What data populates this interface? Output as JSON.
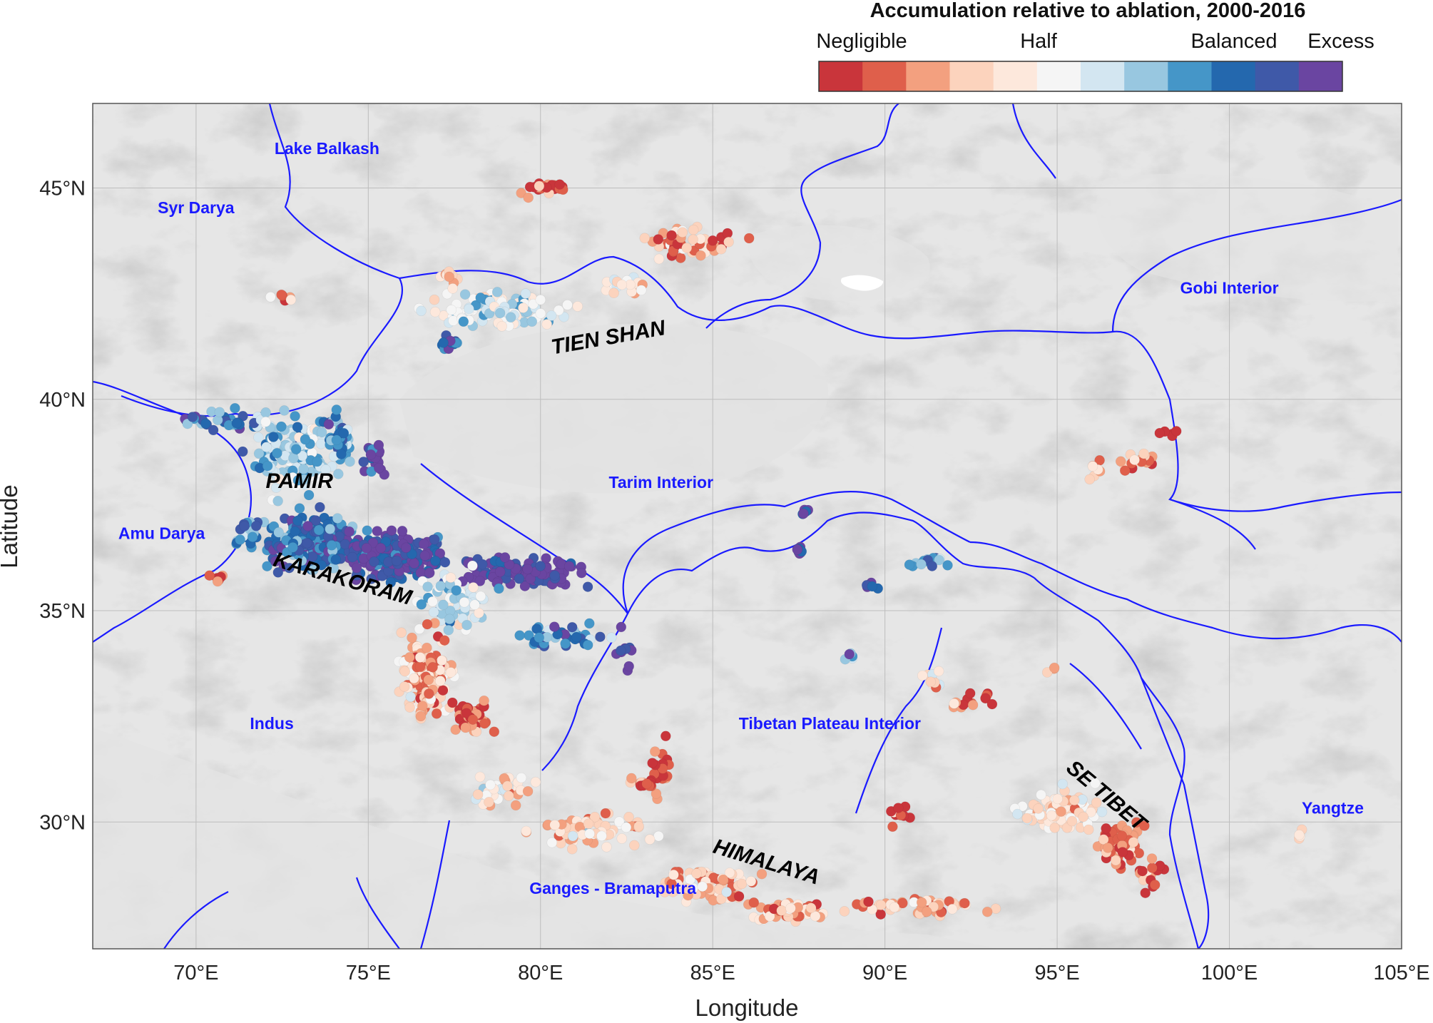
{
  "colorbar": {
    "title": "Accumulation relative to ablation, 2000-2016",
    "labels": [
      "Negligible",
      "Half",
      "Balanced",
      "Excess"
    ],
    "colors": [
      "#c9353b",
      "#df5f4b",
      "#f3a07f",
      "#fcd3bd",
      "#fde8dc",
      "#f5f5f5",
      "#d3e6f1",
      "#98c7e0",
      "#4596c8",
      "#2468ae",
      "#3f59a8",
      "#6a45a1"
    ]
  },
  "axes": {
    "xlabel": "Longitude",
    "ylabel": "Latitude",
    "xticks": [
      "70°E",
      "75°E",
      "80°E",
      "85°E",
      "90°E",
      "95°E",
      "100°E",
      "105°E"
    ],
    "yticks": [
      "30°N",
      "35°N",
      "40°N",
      "45°N"
    ],
    "lon_range": [
      67,
      105
    ],
    "lat_range": [
      27,
      47
    ]
  },
  "basins": [
    {
      "name": "Lake Balkash",
      "lon": 73.8,
      "lat": 45.8
    },
    {
      "name": "Syr Darya",
      "lon": 70.0,
      "lat": 44.4
    },
    {
      "name": "Gobi Interior",
      "lon": 100.0,
      "lat": 42.5
    },
    {
      "name": "Tarim Interior",
      "lon": 83.5,
      "lat": 37.9
    },
    {
      "name": "Amu Darya",
      "lon": 69.0,
      "lat": 36.7
    },
    {
      "name": "Indus",
      "lon": 72.2,
      "lat": 32.2
    },
    {
      "name": "Tibetan Plateau Interior",
      "lon": 88.4,
      "lat": 32.2
    },
    {
      "name": "Yangtze",
      "lon": 103.0,
      "lat": 30.2
    },
    {
      "name": "Ganges - Bramaputra",
      "lon": 82.1,
      "lat": 28.3
    }
  ],
  "regions": [
    {
      "name": "TIEN SHAN",
      "lon": 82.0,
      "lat": 41.3,
      "rot": -10
    },
    {
      "name": "PAMIR",
      "lon": 73.0,
      "lat": 37.9,
      "rot": 0
    },
    {
      "name": "KARAKORAM",
      "lon": 74.2,
      "lat": 35.6,
      "rot": 16
    },
    {
      "name": "HIMALAYA",
      "lon": 86.5,
      "lat": 28.9,
      "rot": 17
    },
    {
      "name": "SE TIBET",
      "lon": 96.3,
      "lat": 30.5,
      "rot": 40
    }
  ],
  "glacier_clusters": [
    {
      "lon": 80.1,
      "lat": 45.0,
      "sx": 0.7,
      "sy": 0.15,
      "n": 22,
      "bias": 0.08
    },
    {
      "lon": 84.2,
      "lat": 43.7,
      "sx": 1.3,
      "sy": 0.3,
      "n": 55,
      "bias": 0.25
    },
    {
      "lon": 77.3,
      "lat": 42.9,
      "sx": 0.3,
      "sy": 0.15,
      "n": 10,
      "bias": 0.3
    },
    {
      "lon": 72.5,
      "lat": 42.4,
      "sx": 0.4,
      "sy": 0.1,
      "n": 6,
      "bias": 0.25
    },
    {
      "lon": 78.8,
      "lat": 42.1,
      "sx": 1.6,
      "sy": 0.35,
      "n": 110,
      "bias": 0.5
    },
    {
      "lon": 82.4,
      "lat": 42.6,
      "sx": 0.6,
      "sy": 0.2,
      "n": 18,
      "bias": 0.4
    },
    {
      "lon": 77.3,
      "lat": 41.3,
      "sx": 0.3,
      "sy": 0.2,
      "n": 12,
      "bias": 0.78
    },
    {
      "lon": 70.8,
      "lat": 39.5,
      "sx": 1.2,
      "sy": 0.2,
      "n": 35,
      "bias": 0.78
    },
    {
      "lon": 72.8,
      "lat": 38.7,
      "sx": 1.0,
      "sy": 0.8,
      "n": 150,
      "bias": 0.62
    },
    {
      "lon": 74.2,
      "lat": 39.0,
      "sx": 0.4,
      "sy": 0.5,
      "n": 40,
      "bias": 0.75
    },
    {
      "lon": 75.2,
      "lat": 38.6,
      "sx": 0.3,
      "sy": 0.3,
      "n": 25,
      "bias": 0.95
    },
    {
      "lon": 73.5,
      "lat": 36.6,
      "sx": 1.2,
      "sy": 0.5,
      "n": 230,
      "bias": 0.8
    },
    {
      "lon": 75.8,
      "lat": 36.3,
      "sx": 1.2,
      "sy": 0.5,
      "n": 200,
      "bias": 0.9
    },
    {
      "lon": 79.5,
      "lat": 35.9,
      "sx": 1.3,
      "sy": 0.3,
      "n": 130,
      "bias": 0.98
    },
    {
      "lon": 77.5,
      "lat": 35.2,
      "sx": 0.9,
      "sy": 0.5,
      "n": 80,
      "bias": 0.55
    },
    {
      "lon": 80.5,
      "lat": 34.4,
      "sx": 1.0,
      "sy": 0.2,
      "n": 40,
      "bias": 0.75
    },
    {
      "lon": 82.5,
      "lat": 34.0,
      "sx": 0.3,
      "sy": 0.4,
      "n": 10,
      "bias": 0.88
    },
    {
      "lon": 70.7,
      "lat": 35.8,
      "sx": 0.2,
      "sy": 0.1,
      "n": 6,
      "bias": 0.1
    },
    {
      "lon": 71.5,
      "lat": 36.8,
      "sx": 0.3,
      "sy": 0.3,
      "n": 20,
      "bias": 0.75
    },
    {
      "lon": 76.7,
      "lat": 33.5,
      "sx": 0.7,
      "sy": 0.9,
      "n": 150,
      "bias": 0.25
    },
    {
      "lon": 78.0,
      "lat": 32.5,
      "sx": 0.5,
      "sy": 0.4,
      "n": 50,
      "bias": 0.1
    },
    {
      "lon": 79.0,
      "lat": 30.8,
      "sx": 0.7,
      "sy": 0.3,
      "n": 40,
      "bias": 0.35
    },
    {
      "lon": 81.5,
      "lat": 29.8,
      "sx": 1.4,
      "sy": 0.35,
      "n": 75,
      "bias": 0.3
    },
    {
      "lon": 83.5,
      "lat": 31.3,
      "sx": 0.2,
      "sy": 0.5,
      "n": 22,
      "bias": 0.05
    },
    {
      "lon": 83.0,
      "lat": 30.9,
      "sx": 0.35,
      "sy": 0.1,
      "n": 15,
      "bias": 0.08
    },
    {
      "lon": 84.8,
      "lat": 28.5,
      "sx": 1.2,
      "sy": 0.3,
      "n": 80,
      "bias": 0.3
    },
    {
      "lon": 87.2,
      "lat": 27.9,
      "sx": 1.0,
      "sy": 0.2,
      "n": 60,
      "bias": 0.25
    },
    {
      "lon": 91.0,
      "lat": 28.0,
      "sx": 1.4,
      "sy": 0.2,
      "n": 55,
      "bias": 0.25
    },
    {
      "lon": 90.3,
      "lat": 30.2,
      "sx": 0.3,
      "sy": 0.2,
      "n": 10,
      "bias": 0.08
    },
    {
      "lon": 92.5,
      "lat": 32.9,
      "sx": 0.5,
      "sy": 0.2,
      "n": 15,
      "bias": 0.15
    },
    {
      "lon": 91.3,
      "lat": 33.4,
      "sx": 0.4,
      "sy": 0.2,
      "n": 10,
      "bias": 0.35
    },
    {
      "lon": 95.2,
      "lat": 30.3,
      "sx": 1.0,
      "sy": 0.5,
      "n": 90,
      "bias": 0.35
    },
    {
      "lon": 96.8,
      "lat": 29.5,
      "sx": 0.5,
      "sy": 0.4,
      "n": 80,
      "bias": 0.15
    },
    {
      "lon": 97.7,
      "lat": 28.7,
      "sx": 0.3,
      "sy": 0.4,
      "n": 15,
      "bias": 0.1
    },
    {
      "lon": 97.5,
      "lat": 38.5,
      "sx": 0.5,
      "sy": 0.2,
      "n": 18,
      "bias": 0.2
    },
    {
      "lon": 96.2,
      "lat": 38.3,
      "sx": 0.2,
      "sy": 0.2,
      "n": 7,
      "bias": 0.2
    },
    {
      "lon": 98.2,
      "lat": 39.2,
      "sx": 0.2,
      "sy": 0.1,
      "n": 5,
      "bias": 0.1
    },
    {
      "lon": 87.5,
      "lat": 36.4,
      "sx": 0.15,
      "sy": 0.1,
      "n": 8,
      "bias": 0.88
    },
    {
      "lon": 87.7,
      "lat": 37.4,
      "sx": 0.15,
      "sy": 0.1,
      "n": 6,
      "bias": 0.85
    },
    {
      "lon": 91.4,
      "lat": 36.2,
      "sx": 0.5,
      "sy": 0.2,
      "n": 14,
      "bias": 0.7
    },
    {
      "lon": 89.6,
      "lat": 35.6,
      "sx": 0.2,
      "sy": 0.1,
      "n": 5,
      "bias": 0.85
    },
    {
      "lon": 88.9,
      "lat": 33.9,
      "sx": 0.15,
      "sy": 0.1,
      "n": 5,
      "bias": 0.8
    },
    {
      "lon": 102.0,
      "lat": 29.7,
      "sx": 0.1,
      "sy": 0.1,
      "n": 4,
      "bias": 0.25
    },
    {
      "lon": 94.8,
      "lat": 33.6,
      "sx": 0.15,
      "sy": 0.1,
      "n": 3,
      "bias": 0.25
    }
  ]
}
